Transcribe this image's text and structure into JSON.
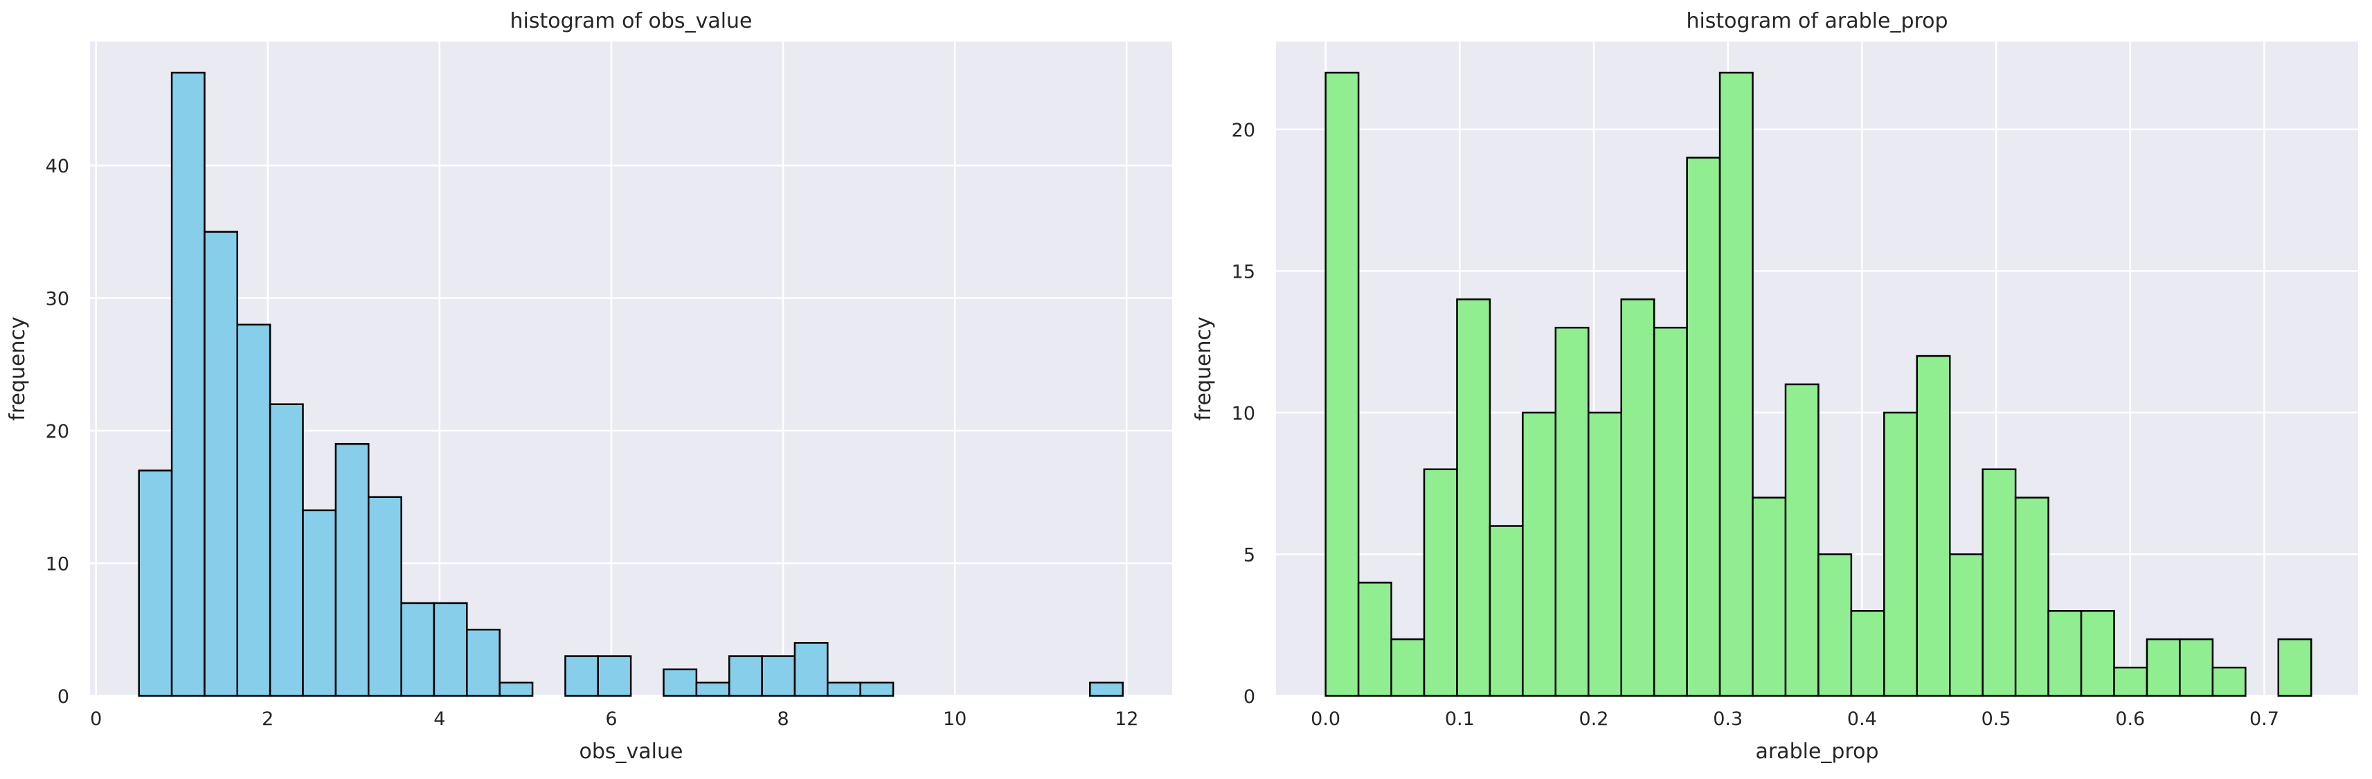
{
  "chart_data": [
    {
      "type": "bar",
      "title": "histogram of obs_value",
      "xlabel": "obs_value",
      "ylabel": "frequency",
      "xlim": [
        -0.07,
        12.53
      ],
      "ylim": [
        0,
        49.35
      ],
      "xticks": [
        0,
        2,
        4,
        6,
        8,
        10,
        12
      ],
      "yticks": [
        0,
        10,
        20,
        30,
        40
      ],
      "bin_edges": [
        0.5,
        0.882,
        1.264,
        1.645,
        2.027,
        2.409,
        2.791,
        3.173,
        3.555,
        3.936,
        4.318,
        4.7,
        5.082,
        5.464,
        5.845,
        6.227,
        6.609,
        6.991,
        7.373,
        7.755,
        8.136,
        8.518,
        8.9,
        9.282,
        9.664,
        10.045,
        10.427,
        10.809,
        11.191,
        11.573,
        11.955
      ],
      "values": [
        17,
        47,
        35,
        28,
        22,
        14,
        19,
        15,
        7,
        7,
        5,
        1,
        0,
        3,
        3,
        0,
        2,
        1,
        3,
        3,
        4,
        1,
        1,
        0,
        0,
        0,
        0,
        0,
        0,
        1
      ],
      "color": "#87CEEB",
      "edgecolor": "#000000",
      "grid": true,
      "background": "#EAEAF2"
    },
    {
      "type": "bar",
      "title": "histogram of arable_prop",
      "xlabel": "arable_prop",
      "ylabel": "frequency",
      "xlim": [
        -0.037,
        0.77
      ],
      "ylim": [
        0,
        23.1
      ],
      "xticks": [
        0.0,
        0.1,
        0.2,
        0.3,
        0.4,
        0.5,
        0.6,
        0.7
      ],
      "xtick_labels": [
        "0.0",
        "0.1",
        "0.2",
        "0.3",
        "0.4",
        "0.5",
        "0.6",
        "0.7"
      ],
      "yticks": [
        0,
        5,
        10,
        15,
        20
      ],
      "bin_edges": [
        0.0,
        0.0245,
        0.049,
        0.0735,
        0.098,
        0.1225,
        0.147,
        0.1715,
        0.196,
        0.2205,
        0.245,
        0.2695,
        0.294,
        0.3185,
        0.343,
        0.3675,
        0.392,
        0.4165,
        0.441,
        0.4655,
        0.49,
        0.5145,
        0.539,
        0.5635,
        0.588,
        0.6125,
        0.637,
        0.6615,
        0.686,
        0.7105,
        0.735
      ],
      "values": [
        22,
        4,
        2,
        8,
        14,
        6,
        10,
        13,
        10,
        14,
        13,
        19,
        22,
        7,
        11,
        5,
        3,
        10,
        12,
        5,
        8,
        7,
        3,
        3,
        1,
        2,
        2,
        1,
        0,
        2
      ],
      "color": "#90EE90",
      "edgecolor": "#000000",
      "grid": true,
      "background": "#EAEAF2"
    }
  ]
}
